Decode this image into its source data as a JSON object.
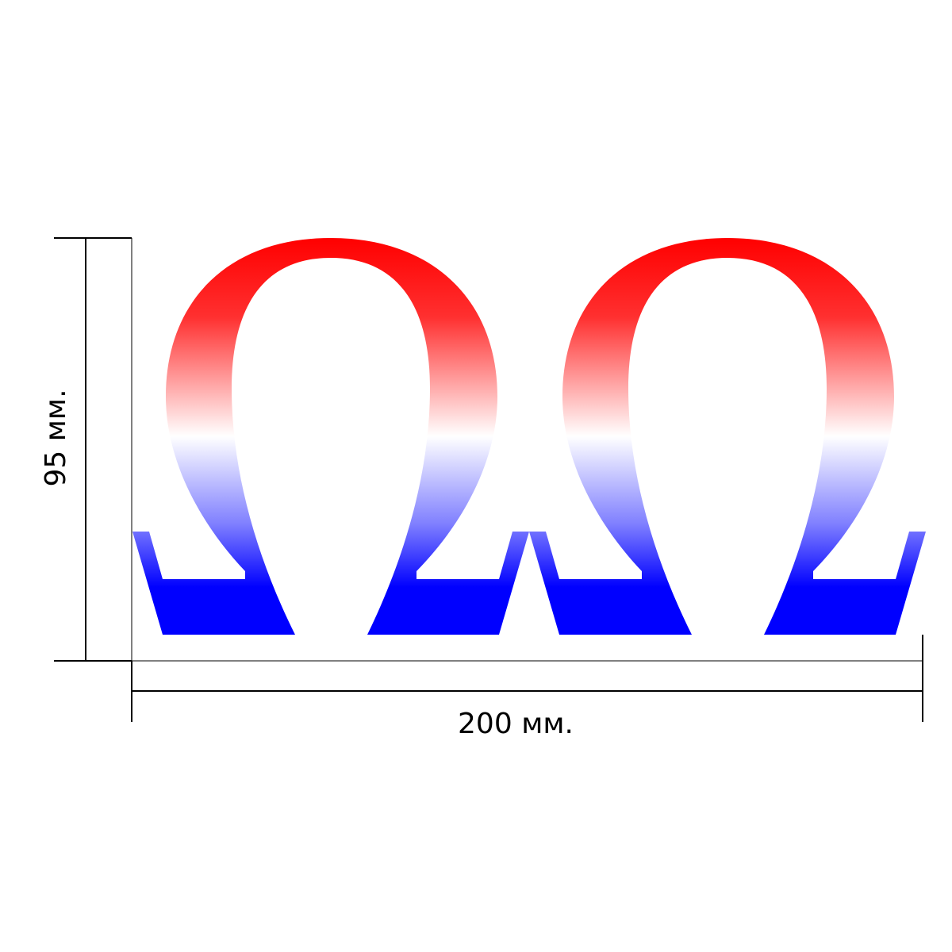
{
  "dimensions": {
    "height_label": "95 мм.",
    "width_label": "200 мм."
  },
  "sticker": {
    "symbol": "omega",
    "count": 2,
    "gradient_colors": {
      "top": "#ff0000",
      "upper": "#ff3030",
      "middle": "#ffffff",
      "lower": "#8080ff",
      "bottom": "#0000ff"
    }
  }
}
